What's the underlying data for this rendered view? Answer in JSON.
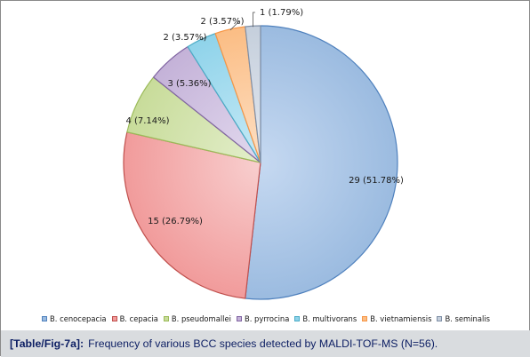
{
  "caption": {
    "tag": "[Table/Fig-7a]:",
    "text": "Frequency of various BCC species detected by MALDI-TOF-MS (N=56)."
  },
  "chart_data": {
    "type": "pie",
    "title": "",
    "start_angle_deg": 0,
    "direction": "clockwise",
    "legend_position": "bottom",
    "slices": [
      {
        "name": "B. cenocepacia",
        "value": 29,
        "label": "29 (51.78%)",
        "color": "#9bbbe0",
        "color_light": "#c6d9f1",
        "edge": "#4f81bd"
      },
      {
        "name": "B. cepacia",
        "value": 15,
        "label": "15 (26.79%)",
        "color": "#f19b9b",
        "color_light": "#f8cfcf",
        "edge": "#c0504d"
      },
      {
        "name": "B. pseudomallei",
        "value": 4,
        "label": "4 (7.14%)",
        "color": "#c8dc9a",
        "color_light": "#e3eecb",
        "edge": "#9bbb59"
      },
      {
        "name": "B. pyrrocina",
        "value": 3,
        "label": "3 (5.36%)",
        "color": "#c4b2d8",
        "color_light": "#e2d9ee",
        "edge": "#8064a2"
      },
      {
        "name": "B. multivorans",
        "value": 2,
        "label": "2 (3.57%)",
        "color": "#8fd3ea",
        "color_light": "#c7eaf6",
        "edge": "#4bacc6"
      },
      {
        "name": "B. vietnamiensis",
        "value": 2,
        "label": "2 (3.57%)",
        "color": "#fbbd84",
        "color_light": "#fde0c5",
        "edge": "#f79646"
      },
      {
        "name": "B. seminalis",
        "value": 1,
        "label": "1 (1.79%)",
        "color": "#c5cfdc",
        "color_light": "#e4e9f0",
        "edge": "#7f8fa6"
      }
    ]
  }
}
